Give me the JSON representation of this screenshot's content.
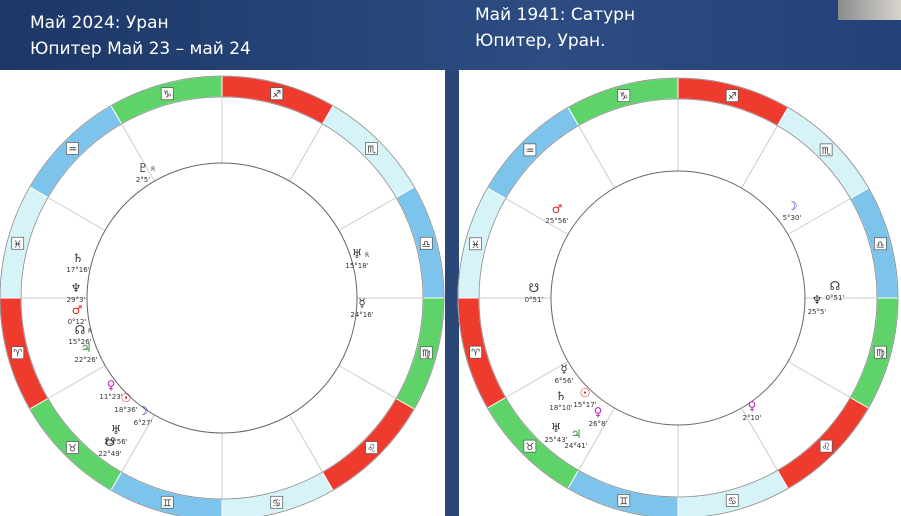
{
  "header": {
    "left": {
      "line1": "Май 2024: Уран",
      "line2": "Юпитер Май 23 – май 24"
    },
    "right": {
      "line1": "Май 1941: Сатурн",
      "line2": "Юпитер, Уран."
    }
  },
  "charts": [
    {
      "signs": [
        "♎",
        "♏",
        "♐",
        "♑",
        "♒",
        "♓",
        "♈",
        "♉",
        "♊",
        "♋",
        "♌",
        "♍"
      ],
      "planets": [
        {
          "glyph": "♇",
          "retro": "R",
          "degree": "2°5'"
        },
        {
          "glyph": "♅",
          "retro": "R",
          "degree": "15°18'"
        },
        {
          "glyph": "☿",
          "degree": "24°16'"
        },
        {
          "glyph": "♄",
          "degree": "17°16'"
        },
        {
          "glyph": "♆",
          "degree": "29°3'"
        },
        {
          "glyph": "♂",
          "degree": "0°12'"
        },
        {
          "glyph": "☊",
          "retro": "R",
          "degree": "15°26'"
        },
        {
          "glyph": "♃",
          "degree": "22°26'"
        },
        {
          "glyph": "♀",
          "degree": "11°23'"
        },
        {
          "glyph": "☉",
          "degree": "18°36'"
        },
        {
          "glyph": "☽",
          "degree": "6°27'"
        },
        {
          "glyph": "♅",
          "degree": "25°56'"
        },
        {
          "glyph": "☋",
          "degree": "22°49'"
        }
      ]
    },
    {
      "signs": [
        "♎",
        "♏",
        "♐",
        "♑",
        "♒",
        "♓",
        "♈",
        "♉",
        "♊",
        "♋",
        "♌",
        "♍"
      ],
      "planets": [
        {
          "glyph": "♂",
          "degree": "25°56'"
        },
        {
          "glyph": "☽",
          "degree": "5°30'"
        },
        {
          "glyph": "☋",
          "degree": "0°51'"
        },
        {
          "glyph": "☊",
          "degree": "0°51'"
        },
        {
          "glyph": "♆",
          "degree": "25°5'"
        },
        {
          "glyph": "☿",
          "degree": "6°56'"
        },
        {
          "glyph": "♄",
          "degree": "18°10'"
        },
        {
          "glyph": "☉",
          "degree": "15°17'"
        },
        {
          "glyph": "♀",
          "degree": "26°8'"
        },
        {
          "glyph": "♅",
          "degree": "25°43'"
        },
        {
          "glyph": "♃",
          "degree": "24°41'"
        },
        {
          "glyph": "♀",
          "degree": "2°10'"
        }
      ]
    }
  ]
}
